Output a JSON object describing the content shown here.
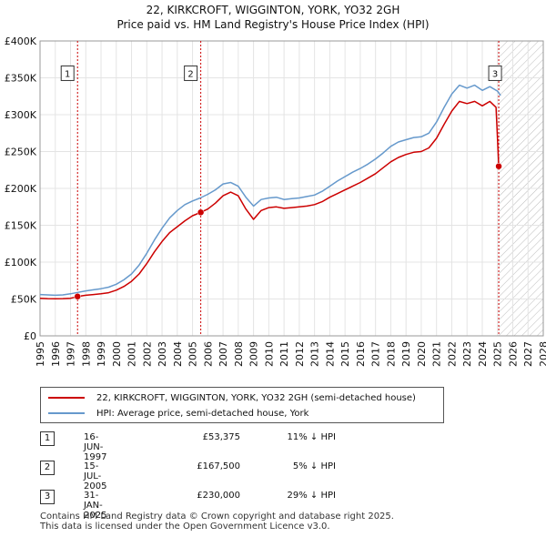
{
  "title_line1": "22, KIRKCROFT, WIGGINTON, YORK, YO32 2GH",
  "title_line2": "Price paid vs. HM Land Registry's House Price Index (HPI)",
  "colors": {
    "price": "#cc0000",
    "hpi": "#6699cc",
    "marker_line": "#cc0000",
    "hatch": "#bbbbbb"
  },
  "chart_data": {
    "type": "line",
    "title": "Price paid vs. HM Land Registry's House Price Index (HPI)",
    "xlim": [
      1995,
      2028
    ],
    "ylim": [
      0,
      400000
    ],
    "x_ticks": [
      1995,
      1996,
      1997,
      1998,
      1999,
      2000,
      2001,
      2002,
      2003,
      2004,
      2005,
      2006,
      2007,
      2008,
      2009,
      2010,
      2011,
      2012,
      2013,
      2014,
      2015,
      2016,
      2017,
      2018,
      2019,
      2020,
      2021,
      2022,
      2023,
      2024,
      2025,
      2026,
      2027,
      2028
    ],
    "y_ticks": [
      {
        "value": 0,
        "label": "£0"
      },
      {
        "value": 50000,
        "label": "£50K"
      },
      {
        "value": 100000,
        "label": "£100K"
      },
      {
        "value": 150000,
        "label": "£150K"
      },
      {
        "value": 200000,
        "label": "£200K"
      },
      {
        "value": 250000,
        "label": "£250K"
      },
      {
        "value": 300000,
        "label": "£300K"
      },
      {
        "value": 350000,
        "label": "£350K"
      },
      {
        "value": 400000,
        "label": "£400K"
      }
    ],
    "hatch_from": 2025.08,
    "series": [
      {
        "name": "22, KIRKCROFT, WIGGINTON, YORK, YO32 2GH (semi-detached house)",
        "color": "#cc0000",
        "x": [
          1995,
          1995.5,
          1996,
          1996.5,
          1997,
          1997.46,
          1998,
          1998.5,
          1999,
          1999.5,
          2000,
          2000.5,
          2001,
          2001.5,
          2002,
          2002.5,
          2003,
          2003.5,
          2004,
          2004.5,
          2005,
          2005.54,
          2006,
          2006.5,
          2007,
          2007.5,
          2008,
          2008.5,
          2009,
          2009.5,
          2010,
          2010.5,
          2011,
          2011.5,
          2012,
          2012.5,
          2013,
          2013.5,
          2014,
          2014.5,
          2015,
          2015.5,
          2016,
          2016.5,
          2017,
          2017.5,
          2018,
          2018.5,
          2019,
          2019.5,
          2020,
          2020.5,
          2021,
          2021.5,
          2022,
          2022.5,
          2023,
          2023.5,
          2024,
          2024.5,
          2024.9,
          2025.08
        ],
        "y": [
          51000,
          50500,
          50200,
          50500,
          51000,
          53375,
          55000,
          56000,
          57000,
          58500,
          62000,
          67000,
          74000,
          84000,
          98000,
          114000,
          128000,
          140000,
          148000,
          156000,
          163000,
          167500,
          172000,
          180000,
          190000,
          195000,
          190000,
          172000,
          158000,
          170000,
          174000,
          175000,
          173000,
          174000,
          175000,
          176000,
          178000,
          182000,
          188000,
          193000,
          198000,
          203000,
          208000,
          214000,
          220000,
          228000,
          236000,
          242000,
          246000,
          249000,
          250000,
          255000,
          268000,
          287000,
          305000,
          318000,
          315000,
          318000,
          312000,
          318000,
          310000,
          230000
        ]
      },
      {
        "name": "HPI: Average price, semi-detached house, York",
        "color": "#6699cc",
        "x": [
          1995,
          1995.5,
          1996,
          1996.5,
          1997,
          1997.5,
          1998,
          1998.5,
          1999,
          1999.5,
          2000,
          2000.5,
          2001,
          2001.5,
          2002,
          2002.5,
          2003,
          2003.5,
          2004,
          2004.5,
          2005,
          2005.5,
          2006,
          2006.5,
          2007,
          2007.5,
          2008,
          2008.5,
          2009,
          2009.5,
          2010,
          2010.5,
          2011,
          2011.5,
          2012,
          2012.5,
          2013,
          2013.5,
          2014,
          2014.5,
          2015,
          2015.5,
          2016,
          2016.5,
          2017,
          2017.5,
          2018,
          2018.5,
          2019,
          2019.5,
          2020,
          2020.5,
          2021,
          2021.5,
          2022,
          2022.5,
          2023,
          2023.5,
          2024,
          2024.5,
          2025,
          2025.2
        ],
        "y": [
          56000,
          55500,
          55000,
          55500,
          57000,
          59000,
          61000,
          62500,
          64000,
          66000,
          70000,
          76000,
          84000,
          96000,
          112000,
          130000,
          146000,
          160000,
          170000,
          178000,
          183000,
          187000,
          192000,
          198000,
          206000,
          208000,
          203000,
          188000,
          176000,
          185000,
          187000,
          188000,
          185000,
          186000,
          187000,
          189000,
          191000,
          196000,
          203000,
          210000,
          216000,
          222000,
          227000,
          233000,
          240000,
          248000,
          257000,
          263000,
          266000,
          269000,
          270000,
          275000,
          290000,
          310000,
          328000,
          340000,
          336000,
          340000,
          333000,
          338000,
          332000,
          326000
        ]
      }
    ],
    "markers": [
      {
        "label": "1",
        "x": 1997.46,
        "y": 53375,
        "box_y": 355000
      },
      {
        "label": "2",
        "x": 2005.54,
        "y": 167500,
        "box_y": 355000
      },
      {
        "label": "3",
        "x": 2025.08,
        "y": 230000,
        "box_y": 355000
      }
    ]
  },
  "legend": {
    "price_label": "22, KIRKCROFT, WIGGINTON, YORK, YO32 2GH (semi-detached house)",
    "hpi_label": "HPI: Average price, semi-detached house, York"
  },
  "sales": [
    {
      "num": "1",
      "date": "16-JUN-1997",
      "price": "£53,375",
      "hpi": "11% ↓ HPI"
    },
    {
      "num": "2",
      "date": "15-JUL-2005",
      "price": "£167,500",
      "hpi": "5% ↓ HPI"
    },
    {
      "num": "3",
      "date": "31-JAN-2025",
      "price": "£230,000",
      "hpi": "29% ↓ HPI"
    }
  ],
  "footer": {
    "line1": "Contains HM Land Registry data © Crown copyright and database right 2025.",
    "line2": "This data is licensed under the Open Government Licence v3.0."
  }
}
